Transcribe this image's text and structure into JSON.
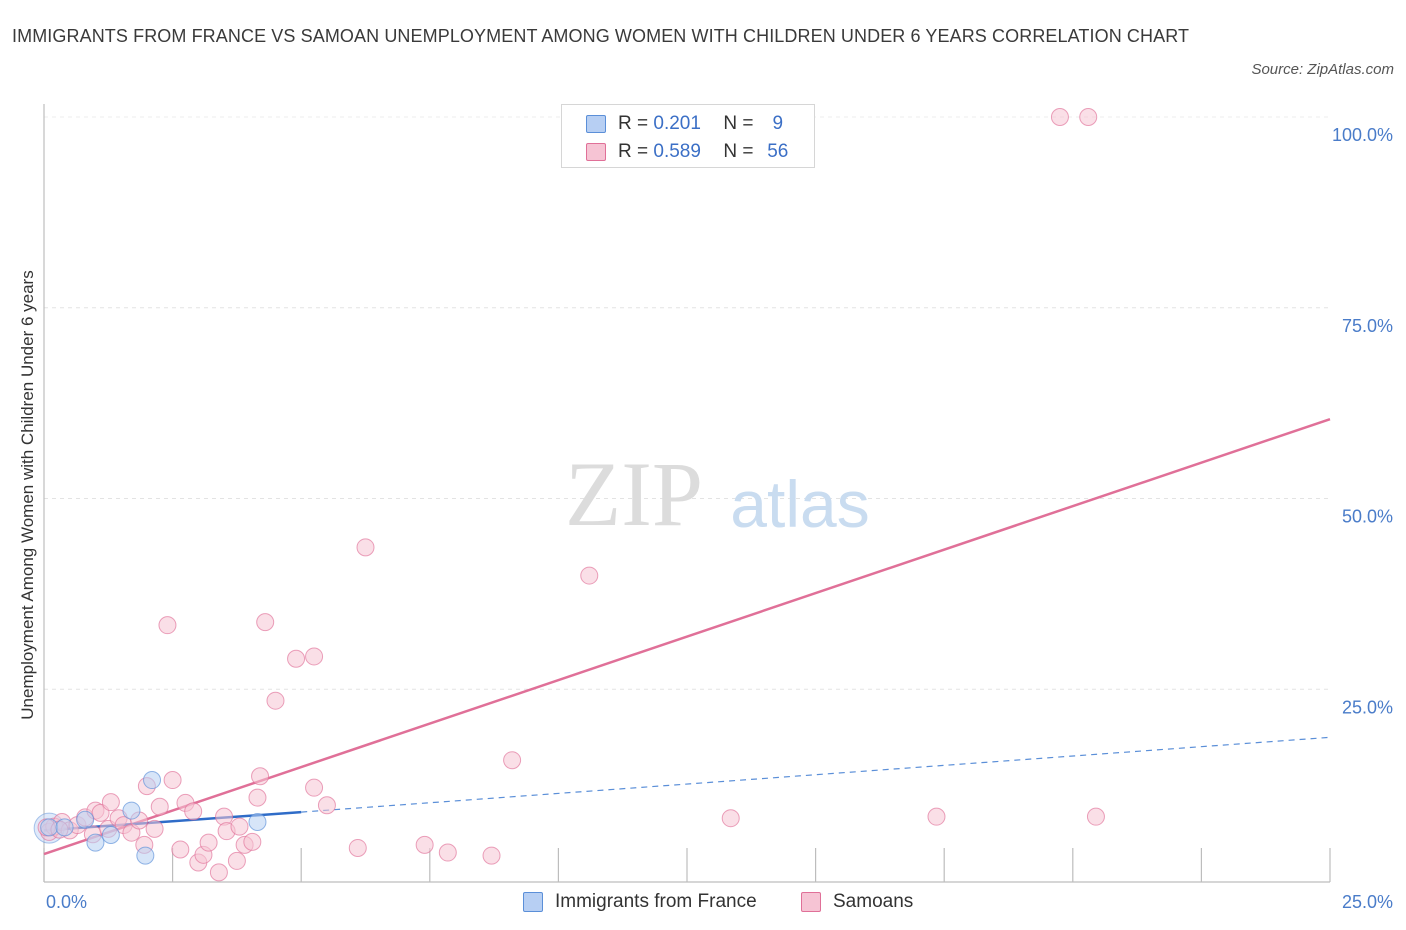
{
  "chart_data": {
    "type": "scatter",
    "title": "IMMIGRANTS FROM FRANCE VS SAMOAN UNEMPLOYMENT AMONG WOMEN WITH CHILDREN UNDER 6 YEARS CORRELATION CHART",
    "source": "Source: ZipAtlas.com",
    "ylabel": "Unemployment Among Women with Children Under 6 years",
    "xlabel": "",
    "xlim": [
      0,
      25
    ],
    "ylim": [
      0,
      100
    ],
    "x_tick_labels": [
      "0.0%",
      "25.0%"
    ],
    "y_tick_labels": [
      {
        "value": 25,
        "label": "25.0%"
      },
      {
        "value": 50,
        "label": "50.0%"
      },
      {
        "value": 75,
        "label": "75.0%"
      },
      {
        "value": 100,
        "label": "100.0%"
      }
    ],
    "grid": true,
    "watermark": {
      "zip": "ZIP",
      "atlas": "atlas"
    },
    "legend": {
      "r_label": "R =",
      "n_label": "N =",
      "entries": [
        {
          "series": "Immigrants from France",
          "r": "0.201",
          "n": "9"
        },
        {
          "series": "Samoans",
          "r": "0.589",
          "n": "56"
        }
      ]
    },
    "series": [
      {
        "name": "Immigrants from France",
        "color": "#5b8fd8",
        "fill": "#b7cff3",
        "points": [
          [
            0.1,
            6.9
          ],
          [
            0.4,
            6.9
          ],
          [
            0.8,
            7.9
          ],
          [
            1.0,
            4.9
          ],
          [
            1.3,
            5.9
          ],
          [
            1.7,
            9.1
          ],
          [
            2.1,
            13.1
          ],
          [
            1.97,
            3.2
          ],
          [
            4.15,
            7.6
          ]
        ],
        "trend_solid": [
          [
            0,
            6.5
          ],
          [
            5.0,
            8.9
          ]
        ],
        "trend_dashed": [
          [
            5.0,
            8.9
          ],
          [
            25.0,
            18.7
          ]
        ]
      },
      {
        "name": "Samoans",
        "color": "#e07098",
        "fill": "#f6c4d4",
        "points": [
          [
            0.1,
            6.3
          ],
          [
            0.2,
            7.0
          ],
          [
            0.35,
            7.6
          ],
          [
            0.5,
            6.5
          ],
          [
            0.65,
            7.2
          ],
          [
            0.8,
            8.2
          ],
          [
            0.95,
            6.0
          ],
          [
            1.0,
            9.1
          ],
          [
            1.1,
            8.8
          ],
          [
            1.25,
            6.7
          ],
          [
            1.3,
            10.2
          ],
          [
            1.45,
            8.1
          ],
          [
            1.55,
            7.2
          ],
          [
            1.7,
            6.2
          ],
          [
            1.85,
            7.8
          ],
          [
            1.95,
            4.6
          ],
          [
            2.0,
            12.3
          ],
          [
            2.15,
            6.7
          ],
          [
            2.25,
            9.6
          ],
          [
            2.4,
            33.4
          ],
          [
            2.5,
            13.1
          ],
          [
            2.65,
            4.0
          ],
          [
            2.75,
            10.1
          ],
          [
            2.9,
            9.0
          ],
          [
            3.0,
            2.3
          ],
          [
            3.1,
            3.3
          ],
          [
            3.2,
            4.9
          ],
          [
            3.4,
            1.0
          ],
          [
            3.5,
            8.3
          ],
          [
            3.55,
            6.4
          ],
          [
            3.75,
            2.5
          ],
          [
            3.8,
            7.0
          ],
          [
            3.9,
            4.6
          ],
          [
            4.05,
            5.0
          ],
          [
            4.15,
            10.8
          ],
          [
            4.2,
            13.6
          ],
          [
            4.3,
            33.8
          ],
          [
            4.5,
            23.5
          ],
          [
            4.9,
            29.0
          ],
          [
            5.25,
            29.3
          ],
          [
            5.25,
            12.1
          ],
          [
            5.5,
            9.8
          ],
          [
            6.1,
            4.2
          ],
          [
            6.25,
            43.6
          ],
          [
            7.4,
            4.6
          ],
          [
            7.85,
            3.6
          ],
          [
            8.7,
            3.2
          ],
          [
            9.1,
            15.7
          ],
          [
            10.6,
            39.9
          ],
          [
            13.35,
            8.1
          ],
          [
            17.35,
            8.3
          ],
          [
            19.75,
            100.0
          ],
          [
            20.3,
            100.0
          ],
          [
            20.45,
            8.3
          ],
          [
            0.05,
            6.9
          ],
          [
            0.3,
            6.6
          ]
        ],
        "trend_solid": [
          [
            0,
            3.4
          ],
          [
            25.0,
            60.4
          ]
        ]
      }
    ]
  }
}
